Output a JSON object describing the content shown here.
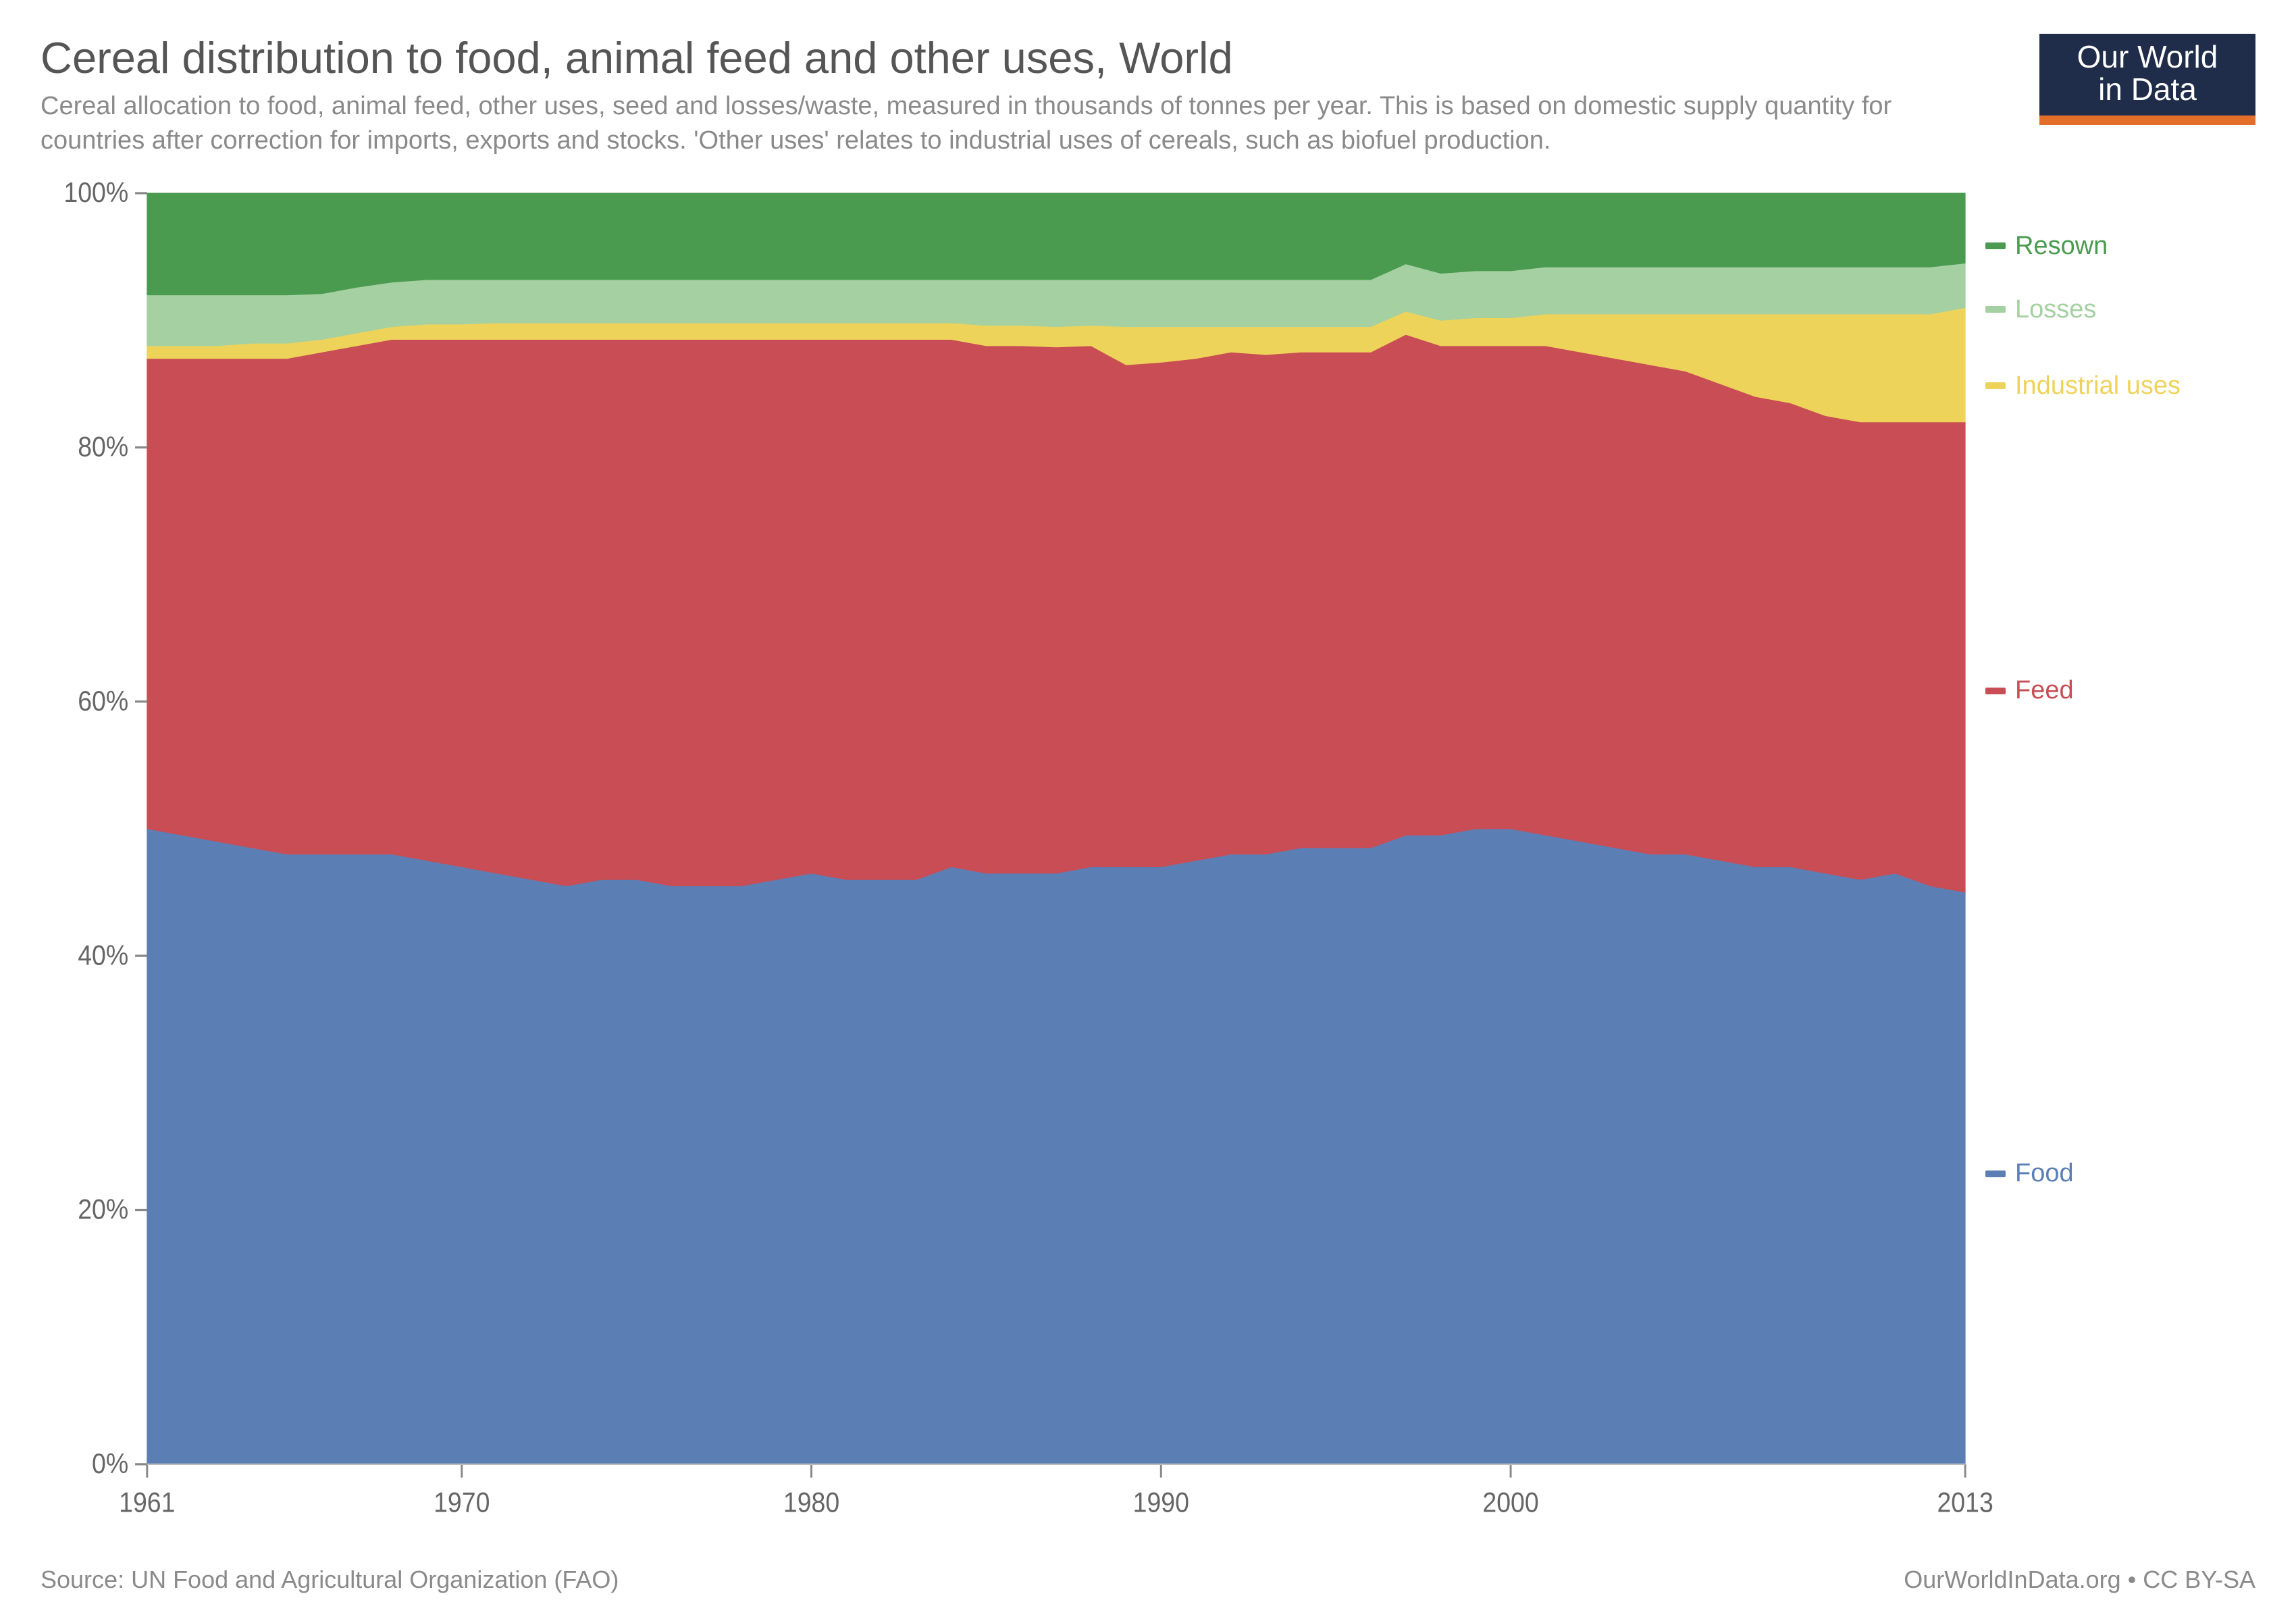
{
  "header": {
    "title": "Cereal distribution to food, animal feed and other uses, World",
    "subtitle": "Cereal allocation to food, animal feed, other uses, seed and losses/waste, measured in thousands of tonnes per year. This is based on domestic supply quantity for countries after correction for imports, exports and stocks. 'Other uses' relates to industrial uses of cereals, such as biofuel production."
  },
  "logo": {
    "line1": "Our World",
    "line2": "in Data",
    "bg_color": "#1f2c4a",
    "accent_color": "#e26e2a",
    "text_color": "#ffffff"
  },
  "footer": {
    "source": "Source: UN Food and Agricultural Organization (FAO)",
    "credit": "OurWorldInData.org • CC BY-SA"
  },
  "chart": {
    "type": "stacked-area-100pct",
    "background_color": "#ffffff",
    "grid_color": "#d9d9d9",
    "axis_text_color": "#666666",
    "axis_fontsize_pt": 29,
    "title_fontsize_pt": 49,
    "subtitle_fontsize_pt": 29,
    "footer_fontsize_pt": 27,
    "x": {
      "min": 1961,
      "max": 2013,
      "ticks": [
        1961,
        1970,
        1980,
        1990,
        2000,
        2013
      ],
      "tick_labels": [
        "1961",
        "1970",
        "1980",
        "1990",
        "2000",
        "2013"
      ]
    },
    "y": {
      "min": 0,
      "max": 100,
      "ticks": [
        0,
        20,
        40,
        60,
        80,
        100
      ],
      "tick_labels": [
        "0%",
        "20%",
        "40%",
        "60%",
        "80%",
        "100%"
      ],
      "grid_at": [
        20,
        40,
        60,
        80
      ]
    },
    "series_order": [
      "food",
      "feed",
      "industrial",
      "losses",
      "resown"
    ],
    "series": {
      "food": {
        "label": "Food",
        "color": "#5b7fb5",
        "legend_y_pct": 76,
        "values": [
          50.0,
          49.5,
          49.0,
          48.5,
          48.0,
          48.0,
          48.0,
          48.0,
          47.5,
          47.0,
          46.5,
          46.0,
          45.5,
          46.0,
          46.0,
          45.5,
          45.5,
          45.5,
          46.0,
          46.5,
          46.0,
          46.0,
          46.0,
          47.0,
          46.5,
          46.5,
          46.5,
          47.0,
          47.0,
          47.0,
          47.5,
          48.0,
          48.0,
          48.5,
          48.5,
          48.5,
          49.0,
          49.5,
          50.0,
          50.0,
          49.5,
          49.0,
          48.5,
          48.0,
          48.0,
          47.5,
          47.0,
          47.0,
          46.5,
          46.0,
          46.5,
          45.5,
          45.0
        ]
      },
      "feed": {
        "label": "Feed",
        "color": "#c94d55",
        "legend_y_pct": 38,
        "values": [
          37.0,
          37.5,
          38.0,
          38.5,
          39.0,
          39.5,
          40.0,
          40.5,
          41.0,
          41.5,
          42.0,
          42.5,
          43.0,
          42.5,
          42.5,
          43.0,
          43.0,
          43.0,
          42.5,
          42.0,
          42.5,
          42.5,
          42.5,
          41.5,
          41.5,
          41.5,
          41.4,
          41.0,
          39.5,
          39.7,
          39.5,
          39.5,
          39.3,
          39.0,
          39.0,
          39.0,
          39.0,
          38.5,
          38.0,
          38.0,
          38.5,
          38.5,
          38.5,
          38.5,
          38.0,
          37.5,
          37.0,
          36.5,
          36.0,
          36.0,
          35.5,
          36.5,
          37.0
        ]
      },
      "industrial": {
        "label": "Industrial uses",
        "color": "#eed35b",
        "legend_y_pct": 14,
        "values": [
          1.0,
          1.0,
          1.0,
          1.2,
          1.2,
          1.0,
          1.0,
          1.0,
          1.2,
          1.2,
          1.3,
          1.3,
          1.3,
          1.3,
          1.3,
          1.3,
          1.3,
          1.3,
          1.3,
          1.3,
          1.3,
          1.3,
          1.3,
          1.3,
          1.6,
          1.6,
          1.6,
          1.6,
          3.0,
          2.8,
          2.5,
          2.0,
          2.2,
          2.0,
          2.0,
          2.0,
          1.8,
          2.0,
          2.2,
          2.2,
          2.5,
          3.0,
          3.5,
          4.0,
          4.5,
          5.5,
          6.5,
          7.0,
          8.0,
          8.5,
          8.5,
          8.5,
          9.0
        ]
      },
      "losses": {
        "label": "Losses",
        "color": "#a5d0a1",
        "legend_y_pct": 8,
        "values": [
          4.0,
          4.0,
          4.0,
          3.8,
          3.8,
          3.6,
          3.6,
          3.5,
          3.5,
          3.5,
          3.4,
          3.4,
          3.4,
          3.4,
          3.4,
          3.4,
          3.4,
          3.4,
          3.4,
          3.4,
          3.4,
          3.4,
          3.4,
          3.4,
          3.6,
          3.6,
          3.7,
          3.6,
          3.7,
          3.7,
          3.7,
          3.7,
          3.7,
          3.7,
          3.7,
          3.7,
          3.7,
          3.7,
          3.7,
          3.7,
          3.7,
          3.7,
          3.7,
          3.7,
          3.7,
          3.7,
          3.7,
          3.7,
          3.7,
          3.7,
          3.7,
          3.7,
          3.5
        ]
      },
      "resown": {
        "label": "Resown",
        "color": "#4a9b50",
        "legend_y_pct": 3,
        "values": [
          8.0,
          8.0,
          8.0,
          8.0,
          8.0,
          7.9,
          7.4,
          7.0,
          6.8,
          6.8,
          6.8,
          6.8,
          6.8,
          6.8,
          6.8,
          6.8,
          6.8,
          6.8,
          6.8,
          6.8,
          6.8,
          6.8,
          6.8,
          6.8,
          6.8,
          6.8,
          6.8,
          6.8,
          6.8,
          6.8,
          6.8,
          6.8,
          6.8,
          6.8,
          6.8,
          6.8,
          5.5,
          6.3,
          6.1,
          6.1,
          5.8,
          5.8,
          5.8,
          5.8,
          5.8,
          5.8,
          5.8,
          5.8,
          5.8,
          5.8,
          5.8,
          5.8,
          5.5
        ]
      }
    }
  }
}
